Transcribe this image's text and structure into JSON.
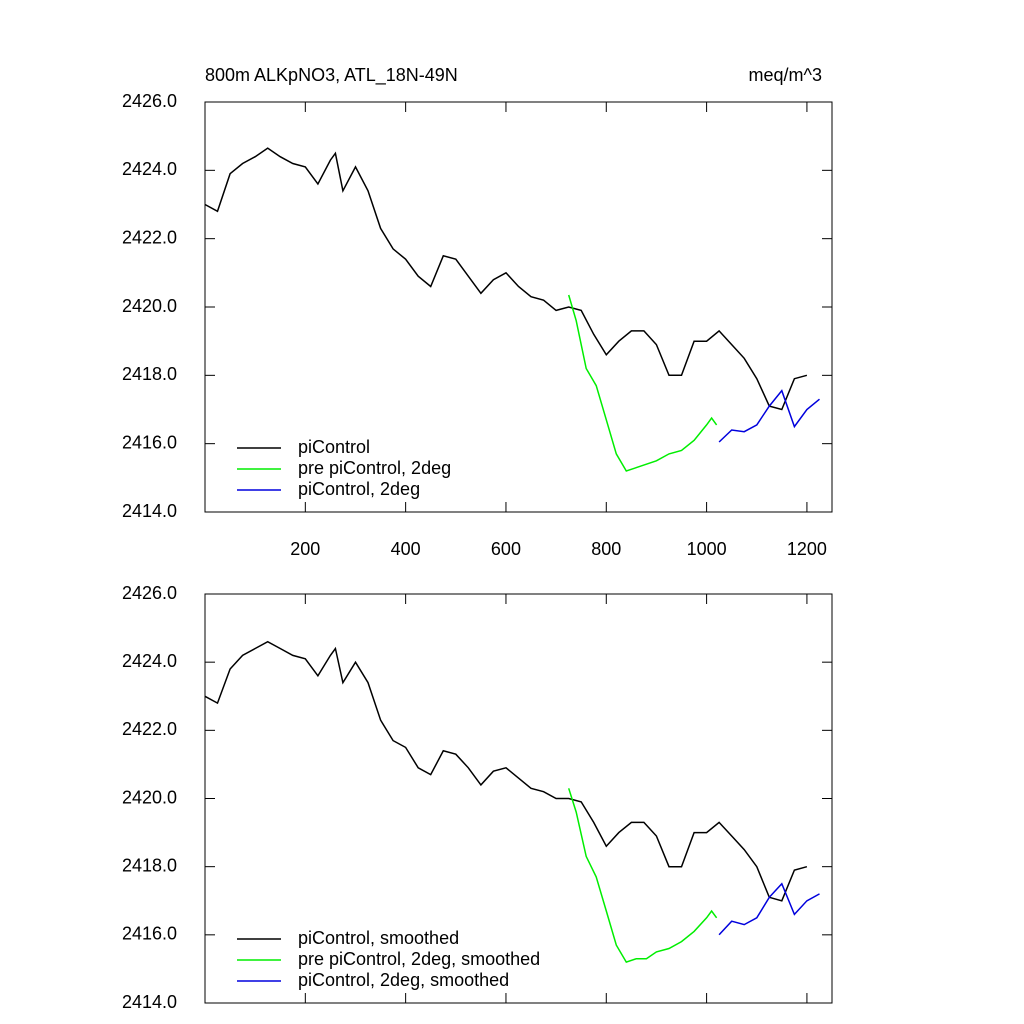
{
  "chart_data": [
    {
      "type": "line",
      "title": "800m ALKpNO3, ATL_18N-49N",
      "units": "meq/m^3",
      "xlim": [
        0,
        1250
      ],
      "xticks": [
        200,
        400,
        600,
        800,
        1000,
        1200
      ],
      "show_xtick_labels": true,
      "ylim": [
        2414,
        2426
      ],
      "yticks": [
        {
          "value": 2414,
          "label": "2414.0"
        },
        {
          "value": 2416,
          "label": "2416.0"
        },
        {
          "value": 2418,
          "label": "2418.0"
        },
        {
          "value": 2420,
          "label": "2420.0"
        },
        {
          "value": 2422,
          "label": "2422.0"
        },
        {
          "value": 2424,
          "label": "2424.0"
        },
        {
          "value": 2426,
          "label": "2426.0"
        }
      ],
      "legend": "lower left",
      "series": [
        {
          "name": "piControl",
          "color": "#000000",
          "x": [
            0,
            25,
            50,
            75,
            100,
            125,
            150,
            175,
            200,
            225,
            250,
            260,
            275,
            300,
            325,
            350,
            375,
            400,
            425,
            450,
            475,
            500,
            525,
            550,
            575,
            600,
            625,
            650,
            675,
            700,
            725,
            750,
            775,
            800,
            825,
            850,
            875,
            900,
            925,
            950,
            975,
            1000,
            1025,
            1050,
            1075,
            1100,
            1125,
            1150,
            1175,
            1200
          ],
          "values": [
            2423.0,
            2422.8,
            2423.9,
            2424.2,
            2424.4,
            2424.65,
            2424.4,
            2424.2,
            2424.1,
            2423.6,
            2424.3,
            2424.5,
            2423.4,
            2424.1,
            2423.4,
            2422.3,
            2421.7,
            2421.4,
            2420.9,
            2420.6,
            2421.5,
            2421.4,
            2420.9,
            2420.4,
            2420.8,
            2421.0,
            2420.6,
            2420.3,
            2420.2,
            2419.9,
            2420.0,
            2419.9,
            2419.2,
            2418.6,
            2419.0,
            2419.3,
            2419.3,
            2418.9,
            2418.0,
            2418.0,
            2419.0,
            2419.0,
            2419.3,
            2418.9,
            2418.5,
            2417.9,
            2417.1,
            2417.0,
            2417.9,
            2418.0
          ]
        },
        {
          "name": "pre piControl, 2deg",
          "color": "#00ee00",
          "x": [
            725,
            740,
            760,
            780,
            800,
            820,
            840,
            860,
            880,
            900,
            925,
            950,
            975,
            1000,
            1010,
            1020
          ],
          "values": [
            2420.35,
            2419.6,
            2418.2,
            2417.7,
            2416.7,
            2415.7,
            2415.2,
            2415.3,
            2415.4,
            2415.5,
            2415.7,
            2415.8,
            2416.1,
            2416.55,
            2416.75,
            2416.55
          ]
        },
        {
          "name": "piControl, 2deg",
          "color": "#0000dd",
          "x": [
            1025,
            1050,
            1075,
            1100,
            1125,
            1150,
            1175,
            1200,
            1225
          ],
          "values": [
            2416.05,
            2416.4,
            2416.35,
            2416.55,
            2417.1,
            2417.55,
            2416.5,
            2417.0,
            2417.3
          ]
        }
      ]
    },
    {
      "type": "line",
      "xlim": [
        0,
        1250
      ],
      "xticks": [
        200,
        400,
        600,
        800,
        1000,
        1200
      ],
      "show_xtick_labels": false,
      "ylim": [
        2414,
        2426
      ],
      "yticks": [
        {
          "value": 2414,
          "label": "2414.0"
        },
        {
          "value": 2416,
          "label": "2416.0"
        },
        {
          "value": 2418,
          "label": "2418.0"
        },
        {
          "value": 2420,
          "label": "2420.0"
        },
        {
          "value": 2422,
          "label": "2422.0"
        },
        {
          "value": 2424,
          "label": "2424.0"
        },
        {
          "value": 2426,
          "label": "2426.0"
        }
      ],
      "legend": "lower left",
      "series": [
        {
          "name": "piControl, smoothed",
          "color": "#000000",
          "x": [
            0,
            25,
            50,
            75,
            100,
            125,
            150,
            175,
            200,
            225,
            250,
            260,
            275,
            300,
            325,
            350,
            375,
            400,
            425,
            450,
            475,
            500,
            525,
            550,
            575,
            600,
            625,
            650,
            675,
            700,
            725,
            750,
            775,
            800,
            825,
            850,
            875,
            900,
            925,
            950,
            975,
            1000,
            1025,
            1050,
            1075,
            1100,
            1125,
            1150,
            1175,
            1200
          ],
          "values": [
            2423.0,
            2422.8,
            2423.8,
            2424.2,
            2424.4,
            2424.6,
            2424.4,
            2424.2,
            2424.1,
            2423.6,
            2424.2,
            2424.4,
            2423.4,
            2424.0,
            2423.4,
            2422.3,
            2421.7,
            2421.5,
            2420.9,
            2420.7,
            2421.4,
            2421.3,
            2420.9,
            2420.4,
            2420.8,
            2420.9,
            2420.6,
            2420.3,
            2420.2,
            2420.0,
            2420.0,
            2419.9,
            2419.3,
            2418.6,
            2419.0,
            2419.3,
            2419.3,
            2418.9,
            2418.0,
            2418.0,
            2419.0,
            2419.0,
            2419.3,
            2418.9,
            2418.5,
            2418.0,
            2417.1,
            2417.0,
            2417.9,
            2418.0
          ]
        },
        {
          "name": "pre piControl, 2deg, smoothed",
          "color": "#00ee00",
          "x": [
            725,
            740,
            760,
            780,
            800,
            820,
            840,
            860,
            880,
            900,
            925,
            950,
            975,
            1000,
            1010,
            1020
          ],
          "values": [
            2420.3,
            2419.6,
            2418.3,
            2417.7,
            2416.7,
            2415.7,
            2415.2,
            2415.3,
            2415.3,
            2415.5,
            2415.6,
            2415.8,
            2416.1,
            2416.5,
            2416.7,
            2416.5
          ]
        },
        {
          "name": "piControl, 2deg, smoothed",
          "color": "#0000dd",
          "x": [
            1025,
            1050,
            1075,
            1100,
            1125,
            1150,
            1175,
            1200,
            1225
          ],
          "values": [
            2416.0,
            2416.4,
            2416.3,
            2416.5,
            2417.1,
            2417.5,
            2416.6,
            2417.0,
            2417.2
          ]
        }
      ]
    }
  ]
}
